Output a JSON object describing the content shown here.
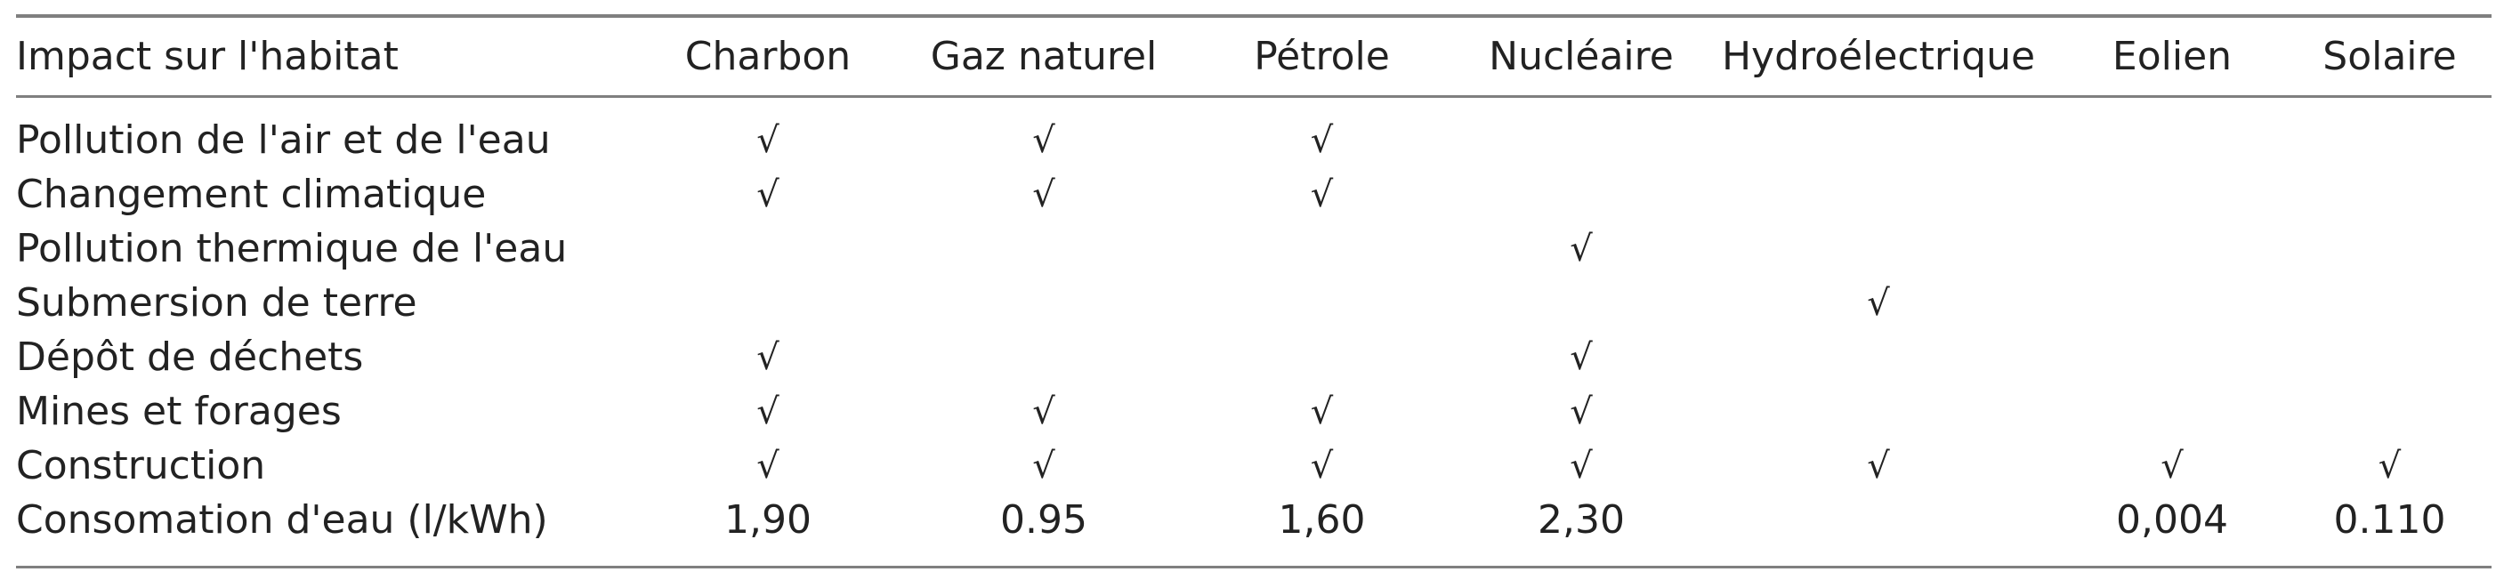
{
  "table": {
    "header": {
      "row_header": "Impact sur l'habitat",
      "columns": [
        "Charbon",
        "Gaz naturel",
        "Pétrole",
        "Nucléaire",
        "Hydroélectrique",
        "Eolien",
        "Solaire"
      ]
    },
    "rows": [
      {
        "label": "Pollution de l'air et de l'eau",
        "cells": [
          "√",
          "√",
          "√",
          "",
          "",
          "",
          ""
        ]
      },
      {
        "label": "Changement climatique",
        "cells": [
          "√",
          "√",
          "√",
          "",
          "",
          "",
          ""
        ]
      },
      {
        "label": "Pollution thermique de l'eau",
        "cells": [
          "",
          "",
          "",
          "√",
          "",
          "",
          ""
        ]
      },
      {
        "label": "Submersion de terre",
        "cells": [
          "",
          "",
          "",
          "",
          "√",
          "",
          ""
        ]
      },
      {
        "label": "Dépôt de déchets",
        "cells": [
          "√",
          "",
          "",
          "√",
          "",
          "",
          ""
        ]
      },
      {
        "label": "Mines et forages",
        "cells": [
          "√",
          "√",
          "√",
          "√",
          "",
          "",
          ""
        ]
      },
      {
        "label": "Construction",
        "cells": [
          "√",
          "√",
          "√",
          "√",
          "√",
          "√",
          "√"
        ]
      },
      {
        "label": "Consomation d'eau (l/kWh)",
        "cells": [
          "1,90",
          "0.95",
          "1,60",
          "2,30",
          "",
          "0,004",
          "0.110"
        ]
      }
    ]
  }
}
